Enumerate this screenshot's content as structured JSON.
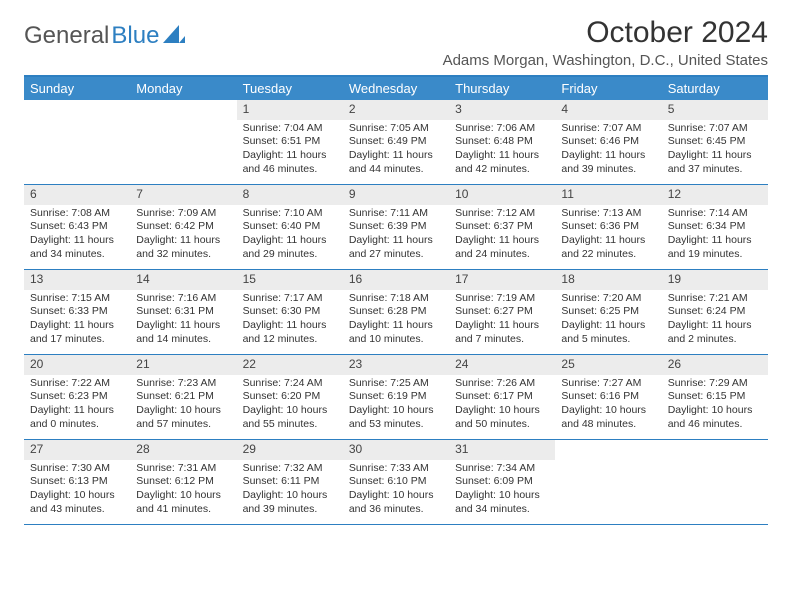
{
  "logo": {
    "gray": "General",
    "blue": "Blue"
  },
  "title": "October 2024",
  "location": "Adams Morgan, Washington, D.C., United States",
  "weekdays": [
    "Sunday",
    "Monday",
    "Tuesday",
    "Wednesday",
    "Thursday",
    "Friday",
    "Saturday"
  ],
  "colors": {
    "header_bar": "#3a8ac9",
    "border": "#2d7fc1",
    "daynum_bg": "#ececec"
  },
  "weeks": [
    [
      {
        "day": "",
        "sunrise": "",
        "sunset": "",
        "daylight": ""
      },
      {
        "day": "",
        "sunrise": "",
        "sunset": "",
        "daylight": ""
      },
      {
        "day": "1",
        "sunrise": "Sunrise: 7:04 AM",
        "sunset": "Sunset: 6:51 PM",
        "daylight": "Daylight: 11 hours and 46 minutes."
      },
      {
        "day": "2",
        "sunrise": "Sunrise: 7:05 AM",
        "sunset": "Sunset: 6:49 PM",
        "daylight": "Daylight: 11 hours and 44 minutes."
      },
      {
        "day": "3",
        "sunrise": "Sunrise: 7:06 AM",
        "sunset": "Sunset: 6:48 PM",
        "daylight": "Daylight: 11 hours and 42 minutes."
      },
      {
        "day": "4",
        "sunrise": "Sunrise: 7:07 AM",
        "sunset": "Sunset: 6:46 PM",
        "daylight": "Daylight: 11 hours and 39 minutes."
      },
      {
        "day": "5",
        "sunrise": "Sunrise: 7:07 AM",
        "sunset": "Sunset: 6:45 PM",
        "daylight": "Daylight: 11 hours and 37 minutes."
      }
    ],
    [
      {
        "day": "6",
        "sunrise": "Sunrise: 7:08 AM",
        "sunset": "Sunset: 6:43 PM",
        "daylight": "Daylight: 11 hours and 34 minutes."
      },
      {
        "day": "7",
        "sunrise": "Sunrise: 7:09 AM",
        "sunset": "Sunset: 6:42 PM",
        "daylight": "Daylight: 11 hours and 32 minutes."
      },
      {
        "day": "8",
        "sunrise": "Sunrise: 7:10 AM",
        "sunset": "Sunset: 6:40 PM",
        "daylight": "Daylight: 11 hours and 29 minutes."
      },
      {
        "day": "9",
        "sunrise": "Sunrise: 7:11 AM",
        "sunset": "Sunset: 6:39 PM",
        "daylight": "Daylight: 11 hours and 27 minutes."
      },
      {
        "day": "10",
        "sunrise": "Sunrise: 7:12 AM",
        "sunset": "Sunset: 6:37 PM",
        "daylight": "Daylight: 11 hours and 24 minutes."
      },
      {
        "day": "11",
        "sunrise": "Sunrise: 7:13 AM",
        "sunset": "Sunset: 6:36 PM",
        "daylight": "Daylight: 11 hours and 22 minutes."
      },
      {
        "day": "12",
        "sunrise": "Sunrise: 7:14 AM",
        "sunset": "Sunset: 6:34 PM",
        "daylight": "Daylight: 11 hours and 19 minutes."
      }
    ],
    [
      {
        "day": "13",
        "sunrise": "Sunrise: 7:15 AM",
        "sunset": "Sunset: 6:33 PM",
        "daylight": "Daylight: 11 hours and 17 minutes."
      },
      {
        "day": "14",
        "sunrise": "Sunrise: 7:16 AM",
        "sunset": "Sunset: 6:31 PM",
        "daylight": "Daylight: 11 hours and 14 minutes."
      },
      {
        "day": "15",
        "sunrise": "Sunrise: 7:17 AM",
        "sunset": "Sunset: 6:30 PM",
        "daylight": "Daylight: 11 hours and 12 minutes."
      },
      {
        "day": "16",
        "sunrise": "Sunrise: 7:18 AM",
        "sunset": "Sunset: 6:28 PM",
        "daylight": "Daylight: 11 hours and 10 minutes."
      },
      {
        "day": "17",
        "sunrise": "Sunrise: 7:19 AM",
        "sunset": "Sunset: 6:27 PM",
        "daylight": "Daylight: 11 hours and 7 minutes."
      },
      {
        "day": "18",
        "sunrise": "Sunrise: 7:20 AM",
        "sunset": "Sunset: 6:25 PM",
        "daylight": "Daylight: 11 hours and 5 minutes."
      },
      {
        "day": "19",
        "sunrise": "Sunrise: 7:21 AM",
        "sunset": "Sunset: 6:24 PM",
        "daylight": "Daylight: 11 hours and 2 minutes."
      }
    ],
    [
      {
        "day": "20",
        "sunrise": "Sunrise: 7:22 AM",
        "sunset": "Sunset: 6:23 PM",
        "daylight": "Daylight: 11 hours and 0 minutes."
      },
      {
        "day": "21",
        "sunrise": "Sunrise: 7:23 AM",
        "sunset": "Sunset: 6:21 PM",
        "daylight": "Daylight: 10 hours and 57 minutes."
      },
      {
        "day": "22",
        "sunrise": "Sunrise: 7:24 AM",
        "sunset": "Sunset: 6:20 PM",
        "daylight": "Daylight: 10 hours and 55 minutes."
      },
      {
        "day": "23",
        "sunrise": "Sunrise: 7:25 AM",
        "sunset": "Sunset: 6:19 PM",
        "daylight": "Daylight: 10 hours and 53 minutes."
      },
      {
        "day": "24",
        "sunrise": "Sunrise: 7:26 AM",
        "sunset": "Sunset: 6:17 PM",
        "daylight": "Daylight: 10 hours and 50 minutes."
      },
      {
        "day": "25",
        "sunrise": "Sunrise: 7:27 AM",
        "sunset": "Sunset: 6:16 PM",
        "daylight": "Daylight: 10 hours and 48 minutes."
      },
      {
        "day": "26",
        "sunrise": "Sunrise: 7:29 AM",
        "sunset": "Sunset: 6:15 PM",
        "daylight": "Daylight: 10 hours and 46 minutes."
      }
    ],
    [
      {
        "day": "27",
        "sunrise": "Sunrise: 7:30 AM",
        "sunset": "Sunset: 6:13 PM",
        "daylight": "Daylight: 10 hours and 43 minutes."
      },
      {
        "day": "28",
        "sunrise": "Sunrise: 7:31 AM",
        "sunset": "Sunset: 6:12 PM",
        "daylight": "Daylight: 10 hours and 41 minutes."
      },
      {
        "day": "29",
        "sunrise": "Sunrise: 7:32 AM",
        "sunset": "Sunset: 6:11 PM",
        "daylight": "Daylight: 10 hours and 39 minutes."
      },
      {
        "day": "30",
        "sunrise": "Sunrise: 7:33 AM",
        "sunset": "Sunset: 6:10 PM",
        "daylight": "Daylight: 10 hours and 36 minutes."
      },
      {
        "day": "31",
        "sunrise": "Sunrise: 7:34 AM",
        "sunset": "Sunset: 6:09 PM",
        "daylight": "Daylight: 10 hours and 34 minutes."
      },
      {
        "day": "",
        "sunrise": "",
        "sunset": "",
        "daylight": ""
      },
      {
        "day": "",
        "sunrise": "",
        "sunset": "",
        "daylight": ""
      }
    ]
  ]
}
